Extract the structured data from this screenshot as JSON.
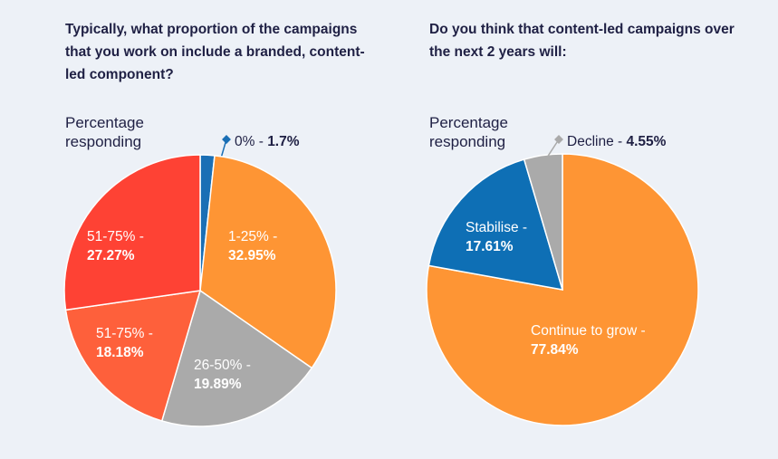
{
  "chart_data": [
    {
      "type": "pie",
      "title": "Typically, what proportion of the campaigns that you work on include a branded, content-led component?",
      "ylabel": "Percentage responding",
      "slices": [
        {
          "label": "0% - ",
          "value": 1.7,
          "value_text": "1.7%",
          "color": "#1a6fb5",
          "label_pos": "outside"
        },
        {
          "label": "1-25% - ",
          "value": 32.95,
          "value_text": "32.95%",
          "color": "#fe9534",
          "label_pos": "inside"
        },
        {
          "label": "26-50% - ",
          "value": 19.89,
          "value_text": "19.89%",
          "color": "#aaaaaa",
          "label_pos": "inside"
        },
        {
          "label": "51-75% - ",
          "value": 18.18,
          "value_text": "18.18%",
          "color": "#fe603b",
          "label_pos": "inside"
        },
        {
          "label": "51-75% - ",
          "value": 27.27,
          "value_text": "27.27%",
          "color": "#fe4234",
          "label_pos": "inside"
        }
      ]
    },
    {
      "type": "pie",
      "title": "Do you think that content-led campaigns over the next 2 years will:",
      "ylabel": "Percentage responding",
      "slices": [
        {
          "label": "Continue to grow - ",
          "value": 77.84,
          "value_text": "77.84%",
          "color": "#fe9534",
          "label_pos": "inside"
        },
        {
          "label": "Stabilise - ",
          "value": 17.61,
          "value_text": "17.61%",
          "color": "#0e6fb5",
          "label_pos": "inside"
        },
        {
          "label": "Decline - ",
          "value": 4.55,
          "value_text": "4.55%",
          "color": "#aaaaaa",
          "label_pos": "outside"
        }
      ]
    }
  ]
}
